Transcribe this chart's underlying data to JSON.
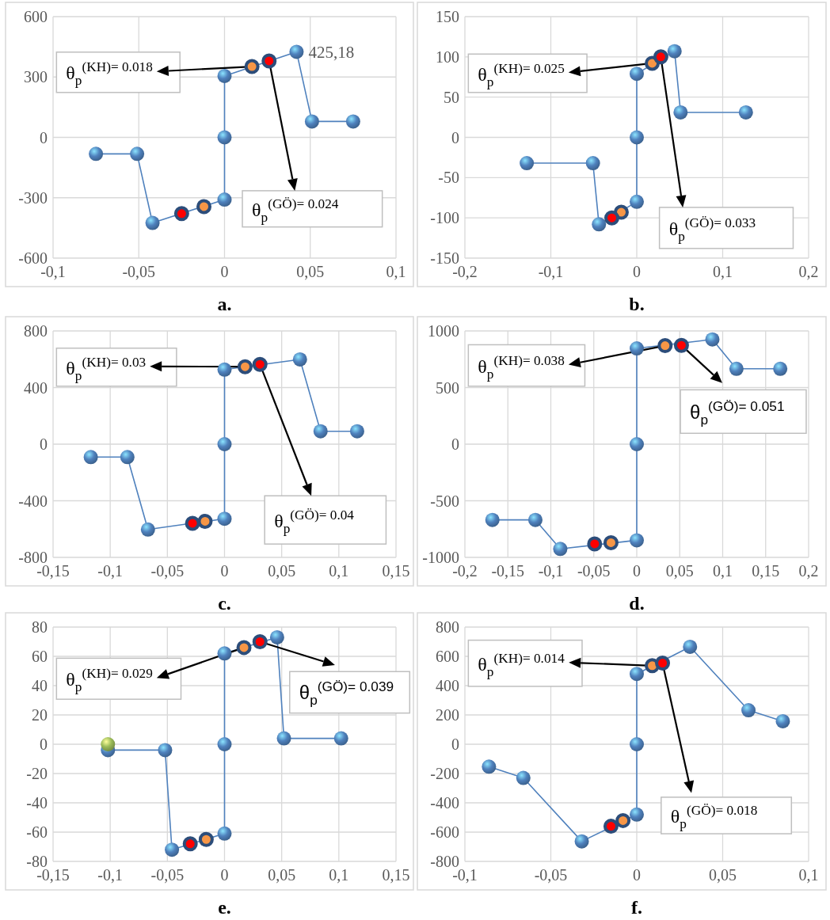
{
  "chart_data": [
    {
      "type": "line",
      "title": "a.",
      "xlim": [
        -0.1,
        0.1
      ],
      "xticks": [
        {
          "value": -0.1,
          "label": "-0,1"
        },
        {
          "value": -0.05,
          "label": "-0,05"
        },
        {
          "value": 0,
          "label": "0"
        },
        {
          "value": 0.05,
          "label": "0,05"
        },
        {
          "value": 0.1,
          "label": "0,1"
        }
      ],
      "ylim": [
        -600,
        600
      ],
      "yticks": [
        -600,
        -300,
        0,
        300,
        600
      ],
      "grid": true,
      "marker": "circle",
      "series": [
        {
          "type": "line",
          "color": "#4f81bd",
          "x": [
            -0.075,
            -0.051,
            -0.042,
            0,
            0,
            0,
            0.042,
            0.051,
            0.075
          ],
          "values": [
            -82,
            -82,
            -425,
            -309,
            0,
            305,
            425.18,
            79,
            79
          ],
          "value_labels": [
            null,
            null,
            null,
            null,
            null,
            null,
            "425,18",
            null,
            null
          ]
        },
        {
          "type": "scatter",
          "color": "#f79646",
          "x": [
            -0.012,
            0.016
          ],
          "values": [
            -344,
            352
          ]
        },
        {
          "type": "scatter",
          "color": "#ff0000",
          "x": [
            -0.025,
            0.026
          ],
          "values": [
            -379,
            380
          ]
        }
      ],
      "annotations": [
        {
          "text": "θ$_{p}$$^{(KH)= 0.018}$",
          "x": 0.016,
          "y": 352
        },
        {
          "text": "θ$_{p}$$^{(GÖ)= 0.024}$",
          "x": 0.026,
          "y": 380
        }
      ]
    },
    {
      "type": "line",
      "title": "b.",
      "xlim": [
        -0.2,
        0.2
      ],
      "xticks": [
        {
          "value": -0.2,
          "label": "-0,2"
        },
        {
          "value": -0.1,
          "label": "-0,1"
        },
        {
          "value": 0,
          "label": "0"
        },
        {
          "value": 0.1,
          "label": "0,1"
        },
        {
          "value": 0.2,
          "label": "0,2"
        }
      ],
      "ylim": [
        -150,
        150
      ],
      "yticks": [
        -150,
        -100,
        -50,
        0,
        50,
        100,
        150
      ],
      "grid": true,
      "marker": "circle",
      "series": [
        {
          "type": "line",
          "color": "#4f81bd",
          "x": [
            -0.128,
            -0.051,
            -0.044,
            0,
            0,
            0,
            0.044,
            0.051,
            0.127
          ],
          "values": [
            -32,
            -32,
            -108,
            -80,
            0,
            79,
            107,
            31,
            31
          ]
        },
        {
          "type": "scatter",
          "color": "#f79646",
          "x": [
            -0.018,
            0.018
          ],
          "values": [
            -93,
            92
          ]
        },
        {
          "type": "scatter",
          "color": "#ff0000",
          "x": [
            -0.029,
            0.028
          ],
          "values": [
            -100,
            100
          ]
        }
      ],
      "annotations": [
        {
          "text": "θ$_{p}$$^{(KH)= 0.025}$",
          "x": 0.018,
          "y": 92
        },
        {
          "text": "θ$_{p}$$^{(GÖ)= 0.033}$",
          "x": 0.028,
          "y": 100
        }
      ]
    },
    {
      "type": "line",
      "title": "c.",
      "xlim": [
        -0.15,
        0.15
      ],
      "xticks": [
        {
          "value": -0.15,
          "label": "-0,15"
        },
        {
          "value": -0.1,
          "label": "-0,1"
        },
        {
          "value": -0.05,
          "label": "-0,05"
        },
        {
          "value": 0,
          "label": "0"
        },
        {
          "value": 0.05,
          "label": "0,05"
        },
        {
          "value": 0.1,
          "label": "0,1"
        },
        {
          "value": 0.15,
          "label": "0,15"
        }
      ],
      "ylim": [
        -800,
        800
      ],
      "yticks": [
        -800,
        -400,
        0,
        400,
        800
      ],
      "grid": true,
      "marker": "circle",
      "series": [
        {
          "type": "line",
          "color": "#4f81bd",
          "x": [
            -0.117,
            -0.085,
            -0.067,
            0,
            0,
            0,
            0.066,
            0.084,
            0.116
          ],
          "values": [
            -91,
            -91,
            -603,
            -527,
            0,
            527,
            599,
            91,
            91
          ]
        },
        {
          "type": "scatter",
          "color": "#f79646",
          "x": [
            -0.017,
            0.018
          ],
          "values": [
            -545,
            547
          ]
        },
        {
          "type": "scatter",
          "color": "#ff0000",
          "x": [
            -0.028,
            0.031
          ],
          "values": [
            -559,
            564
          ]
        }
      ],
      "annotations": [
        {
          "text": "θ$_{p}$$^{(KH)= 0.03}$",
          "x": 0.018,
          "y": 547
        },
        {
          "text": "θ$_{p}$$^{(GÖ)= 0.04}$",
          "x": 0.031,
          "y": 564
        }
      ]
    },
    {
      "type": "line",
      "title": "d.",
      "xlim": [
        -0.2,
        0.2
      ],
      "xticks": [
        {
          "value": -0.2,
          "label": "-0,2"
        },
        {
          "value": -0.15,
          "label": "-0,15"
        },
        {
          "value": -0.1,
          "label": "-0,1"
        },
        {
          "value": -0.05,
          "label": "-0,05"
        },
        {
          "value": 0,
          "label": "0"
        },
        {
          "value": 0.05,
          "label": "0,05"
        },
        {
          "value": 0.1,
          "label": "0,1"
        },
        {
          "value": 0.15,
          "label": "0,15"
        },
        {
          "value": 0.2,
          "label": "0,2"
        }
      ],
      "ylim": [
        -1000,
        1000
      ],
      "yticks": [
        -1000,
        -500,
        0,
        500,
        1000
      ],
      "grid": true,
      "marker": "circle",
      "series": [
        {
          "type": "line",
          "color": "#4f81bd",
          "x": [
            -0.168,
            -0.118,
            -0.089,
            0,
            0,
            0,
            0.088,
            0.116,
            0.167
          ],
          "values": [
            -669,
            -669,
            -925,
            -849,
            0,
            846,
            925,
            666,
            666
          ]
        },
        {
          "type": "scatter",
          "color": "#f79646",
          "x": [
            -0.03,
            0.033
          ],
          "values": [
            -870,
            870
          ]
        },
        {
          "type": "scatter",
          "color": "#ff0000",
          "x": [
            -0.049,
            0.052
          ],
          "values": [
            -881,
            873
          ]
        }
      ],
      "annotations": [
        {
          "text": "θ$_{p}$$^{(KH)= 0.038}$",
          "x": 0.033,
          "y": 870
        },
        {
          "text": "θ$_{p}$$^{(GÖ)= 0.051}$",
          "x": 0.052,
          "y": 873
        }
      ]
    },
    {
      "type": "line",
      "title": "e.",
      "xlim": [
        -0.15,
        0.15
      ],
      "xticks": [
        {
          "value": -0.15,
          "label": "-0,15"
        },
        {
          "value": -0.1,
          "label": "-0,1"
        },
        {
          "value": -0.05,
          "label": "-0,05"
        },
        {
          "value": 0,
          "label": "0"
        },
        {
          "value": 0.05,
          "label": "0,05"
        },
        {
          "value": 0.1,
          "label": "0,1"
        },
        {
          "value": 0.15,
          "label": "0,15"
        }
      ],
      "ylim": [
        -80,
        80
      ],
      "yticks": [
        -80,
        -60,
        -40,
        -20,
        0,
        20,
        40,
        60,
        80
      ],
      "grid": true,
      "marker": "circle",
      "series": [
        {
          "type": "line",
          "color": "#4f81bd",
          "x": [
            -0.102,
            -0.052,
            -0.046,
            0,
            0,
            0,
            0.046,
            0.052,
            0.102
          ],
          "values": [
            -4,
            -4,
            -72,
            -61,
            0,
            62,
            73,
            4,
            4
          ]
        },
        {
          "type": "scatter",
          "color": "#f79646",
          "x": [
            -0.016,
            0.017
          ],
          "values": [
            -65,
            66
          ]
        },
        {
          "type": "scatter",
          "color": "#ff0000",
          "x": [
            -0.03,
            0.031
          ],
          "values": [
            -68,
            70
          ]
        },
        {
          "type": "scatter",
          "color": "#9bbb59",
          "x": [
            -0.102
          ],
          "values": [
            0
          ]
        }
      ],
      "annotations": [
        {
          "text": "θ$_{p}$$^{(KH)= 0.029}$",
          "x": 0.017,
          "y": 66
        },
        {
          "text": "θ$_{p}$$^{(GÖ)= 0.039}$",
          "x": 0.031,
          "y": 70
        }
      ]
    },
    {
      "type": "line",
      "title": "f.",
      "xlim": [
        -0.1,
        0.1
      ],
      "xticks": [
        {
          "value": -0.1,
          "label": "-0,1"
        },
        {
          "value": -0.05,
          "label": "-0,05"
        },
        {
          "value": 0,
          "label": "0"
        },
        {
          "value": 0.05,
          "label": "0,05"
        },
        {
          "value": 0.1,
          "label": "0,1"
        }
      ],
      "ylim": [
        -800,
        800
      ],
      "yticks": [
        -800,
        -600,
        -400,
        -200,
        0,
        200,
        400,
        600,
        800
      ],
      "grid": true,
      "marker": "circle",
      "series": [
        {
          "type": "line",
          "color": "#4f81bd",
          "x": [
            -0.086,
            -0.066,
            -0.032,
            0,
            0,
            0,
            0.031,
            0.065,
            0.085
          ],
          "values": [
            -153,
            -230,
            -663,
            -480,
            0,
            480,
            665,
            232,
            157
          ]
        },
        {
          "type": "scatter",
          "color": "#f79646",
          "x": [
            -0.008,
            0.009
          ],
          "values": [
            -521,
            536
          ]
        },
        {
          "type": "scatter",
          "color": "#ff0000",
          "x": [
            -0.015,
            0.015
          ],
          "values": [
            -560,
            554
          ]
        }
      ],
      "annotations": [
        {
          "text": "θ$_{p}$$^{(KH)= 0.014}$",
          "x": 0.009,
          "y": 536
        },
        {
          "text": "θ$_{p}$$^{(GÖ)= 0.018}$",
          "x": 0.015,
          "y": 554
        }
      ]
    }
  ]
}
